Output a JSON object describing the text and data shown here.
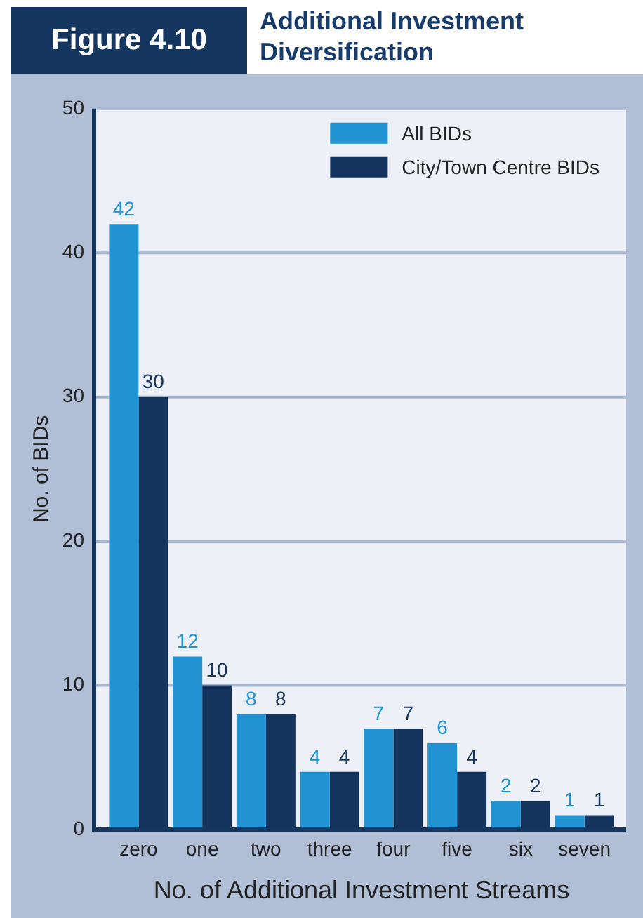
{
  "chart_data": {
    "type": "bar",
    "title": "Additional Investment Diversification",
    "annotations": [
      "Figure 4.10"
    ],
    "xlabel": "No. of Additional Investment Streams",
    "ylabel": "No. of BIDs",
    "categories": [
      "zero",
      "one",
      "two",
      "three",
      "four",
      "five",
      "six",
      "seven"
    ],
    "series": [
      {
        "name": "All BIDs",
        "color": "#2193d3",
        "values": [
          42,
          12,
          8,
          4,
          7,
          6,
          2,
          1
        ]
      },
      {
        "name": "City/Town Centre BIDs",
        "color": "#14345e",
        "values": [
          30,
          10,
          8,
          4,
          7,
          4,
          2,
          1
        ]
      }
    ],
    "ylim": [
      0,
      50
    ],
    "yticks": [
      0,
      10,
      20,
      30,
      40,
      50
    ],
    "grid": "y",
    "legend": "top right",
    "data_labels": true
  }
}
